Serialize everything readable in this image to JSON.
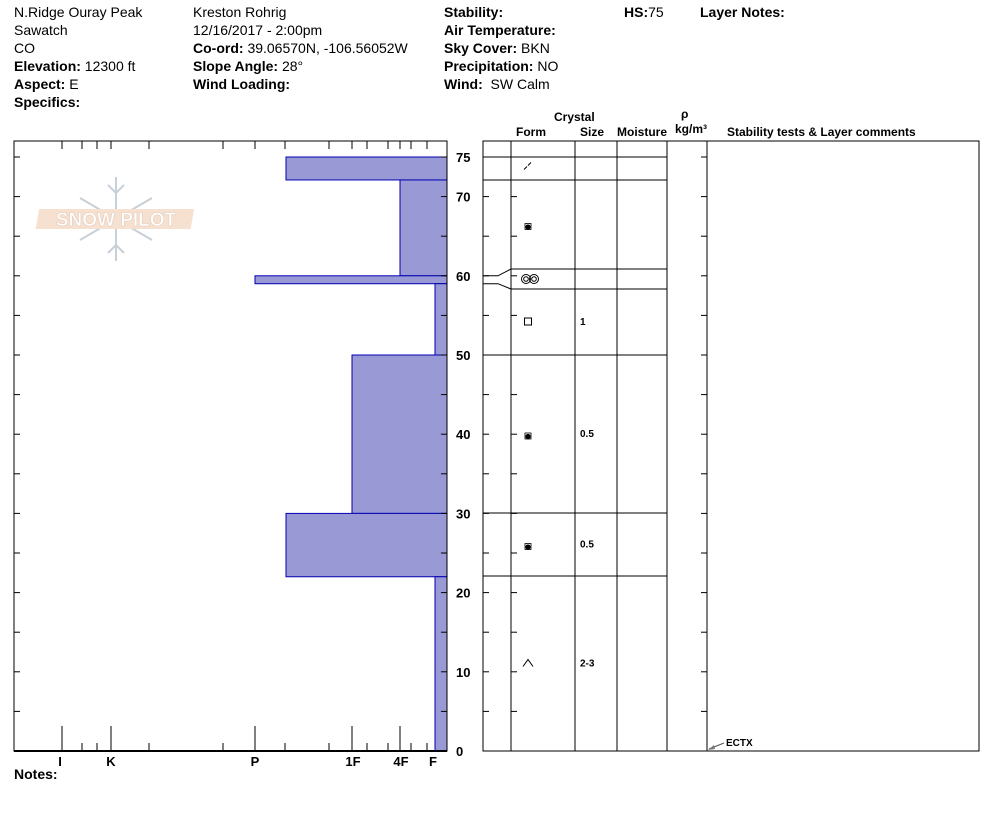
{
  "header": {
    "location": "N.Ridge Ouray Peak",
    "range": "Sawatch",
    "state": "CO",
    "elevation_label": "Elevation:",
    "elevation": "12300 ft",
    "aspect_label": "Aspect:",
    "aspect": "E",
    "specifics_label": "Specifics:",
    "observer": "Kreston Rohrig",
    "datetime": "12/16/2017 - 2:00pm",
    "coord_label": "Co-ord:",
    "coord": "39.06570N, -106.56052W",
    "slope_label": "Slope Angle:",
    "slope": "28°",
    "wind_loading_label": "Wind Loading:",
    "stability_label": "Stability:",
    "air_temp_label": "Air Temperature:",
    "sky_label": "Sky Cover:",
    "sky": "BKN",
    "precip_label": "Precipitation:",
    "precip": "NO",
    "wind_label": "Wind:",
    "wind": "SW Calm",
    "hs_label": "HS:",
    "hs": "75",
    "layer_notes_label": "Layer Notes:",
    "notes_label": "Notes:"
  },
  "table_headers": {
    "crystal": "Crystal",
    "form": "Form",
    "size": "Size",
    "moisture": "Moisture",
    "rho": "ρ",
    "density_unit": "kg/m³",
    "comments": "Stability tests & Layer comments"
  },
  "logo_text": "SNOW PILOT",
  "chart_data": {
    "type": "bar",
    "orientation": "horizontal-layer-profile",
    "ylabel": "",
    "ylim": [
      0,
      77
    ],
    "y_ticks": [
      0,
      10,
      20,
      30,
      40,
      50,
      60,
      70,
      75
    ],
    "hardness_scale": [
      "I",
      "K-",
      "K",
      "K+",
      "P-",
      "P",
      "P+",
      "1F-",
      "1F",
      "1F+",
      "4F-",
      "4F",
      "4F+",
      "F-",
      "F"
    ],
    "hardness_tick_labels": [
      "I",
      "K",
      "P",
      "1F",
      "4F",
      "F"
    ],
    "bar_color": "#9999d6",
    "layers": [
      {
        "top": 75,
        "bottom": 72.1,
        "hardness": "1F+",
        "form": "DF",
        "size": ""
      },
      {
        "top": 72.1,
        "bottom": 60,
        "hardness": "4F",
        "form": "FCxr",
        "size": ""
      },
      {
        "top": 60,
        "bottom": 59,
        "hardness": "P",
        "form": "MF",
        "size": ""
      },
      {
        "top": 59,
        "bottom": 50,
        "hardness": "F",
        "form": "FC",
        "size": "1"
      },
      {
        "top": 50,
        "bottom": 30,
        "hardness": "1F",
        "form": "FCxr",
        "size": "0.5"
      },
      {
        "top": 30,
        "bottom": 22,
        "hardness": "1F+",
        "form": "FCxr",
        "size": "0.5"
      },
      {
        "top": 22,
        "bottom": 0,
        "hardness": "F",
        "form": "DH",
        "size": "2-3"
      }
    ],
    "stability_tests": [
      {
        "depth": 0,
        "label": "ECTX"
      }
    ]
  }
}
